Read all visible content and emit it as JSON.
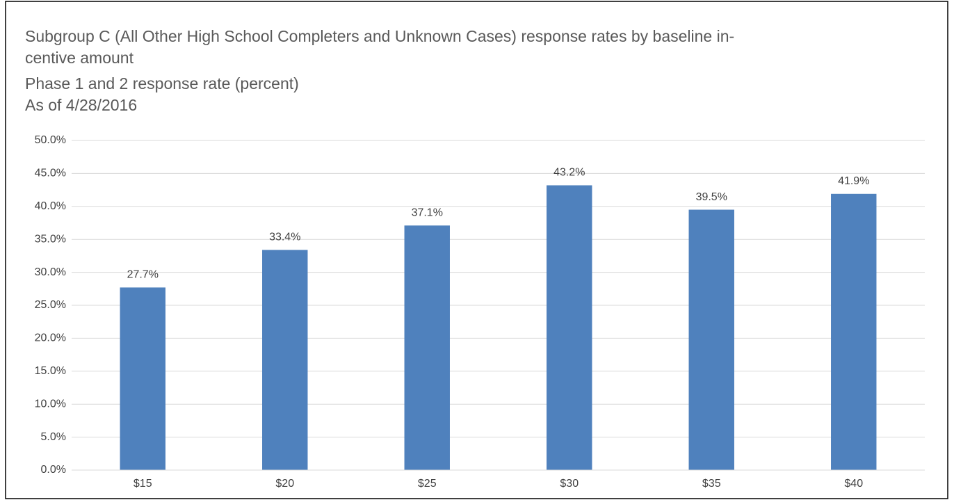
{
  "chart_data": {
    "type": "bar",
    "title": [
      "Subgroup C (All Other High School Completers and Unknown Cases) response rates by baseline in-",
      "centive amount"
    ],
    "subtitle": [
      "Phase 1 and 2 response rate (percent)",
      "As of 4/28/2016"
    ],
    "categories": [
      "$15",
      "$20",
      "$25",
      "$30",
      "$35",
      "$40"
    ],
    "values": [
      27.7,
      33.4,
      37.1,
      43.2,
      39.5,
      41.9
    ],
    "value_labels": [
      "27.7%",
      "33.4%",
      "37.1%",
      "43.2%",
      "39.5%",
      "41.9%"
    ],
    "color": "#4f81bd",
    "ylim": [
      0,
      50
    ],
    "yticks": [
      {
        "value": 0,
        "label": "0.0%"
      },
      {
        "value": 5,
        "label": "5.0%"
      },
      {
        "value": 10,
        "label": "10.0%"
      },
      {
        "value": 15,
        "label": "15.0%"
      },
      {
        "value": 20,
        "label": "20.0%"
      },
      {
        "value": 25,
        "label": "25.0%"
      },
      {
        "value": 30,
        "label": "30.0%"
      },
      {
        "value": 35,
        "label": "35.0%"
      },
      {
        "value": 40,
        "label": "40.0%"
      },
      {
        "value": 45,
        "label": "45.0%"
      },
      {
        "value": 50,
        "label": "50.0%"
      }
    ],
    "grid": true
  }
}
